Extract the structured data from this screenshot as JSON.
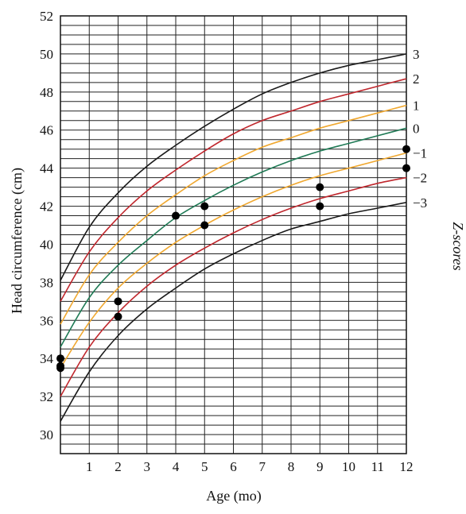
{
  "chart_data": {
    "type": "line",
    "title": "",
    "xlabel": "Age (mo)",
    "ylabel": "Head circumference (cm)",
    "zlabel": "Z-scores",
    "xlim": [
      0,
      12
    ],
    "ylim": [
      29,
      52
    ],
    "x_ticks": [
      1,
      2,
      3,
      4,
      5,
      6,
      7,
      8,
      9,
      10,
      11,
      12
    ],
    "y_ticks": [
      30,
      32,
      34,
      36,
      38,
      40,
      42,
      44,
      46,
      48,
      50,
      52
    ],
    "grid": true,
    "x": [
      0,
      1,
      2,
      3,
      4,
      5,
      6,
      7,
      8,
      9,
      10,
      11,
      12
    ],
    "series": [
      {
        "name": "3",
        "color": "#1a1a1a",
        "values": [
          38.1,
          40.9,
          42.7,
          44.1,
          45.2,
          46.2,
          47.1,
          47.9,
          48.5,
          49.0,
          49.4,
          49.7,
          50.0
        ]
      },
      {
        "name": "2",
        "color": "#c0272d",
        "values": [
          37.0,
          39.6,
          41.4,
          42.8,
          43.9,
          44.9,
          45.8,
          46.5,
          47.0,
          47.5,
          47.9,
          48.3,
          48.7
        ]
      },
      {
        "name": "1",
        "color": "#f0a830",
        "values": [
          35.8,
          38.4,
          40.1,
          41.5,
          42.6,
          43.6,
          44.4,
          45.1,
          45.6,
          46.1,
          46.5,
          46.9,
          47.3
        ]
      },
      {
        "name": "0",
        "color": "#1f7a55",
        "values": [
          34.6,
          37.2,
          38.9,
          40.2,
          41.4,
          42.3,
          43.1,
          43.8,
          44.4,
          44.9,
          45.3,
          45.7,
          46.1
        ]
      },
      {
        "name": "−1",
        "color": "#f0a830",
        "values": [
          33.5,
          35.9,
          37.7,
          39.0,
          40.1,
          41.0,
          41.8,
          42.5,
          43.1,
          43.6,
          44.0,
          44.4,
          44.8
        ]
      },
      {
        "name": "−2",
        "color": "#c0272d",
        "values": [
          32.0,
          34.6,
          36.4,
          37.8,
          38.9,
          39.8,
          40.6,
          41.3,
          41.9,
          42.4,
          42.8,
          43.2,
          43.5
        ]
      },
      {
        "name": "−3",
        "color": "#1a1a1a",
        "values": [
          30.7,
          33.3,
          35.2,
          36.6,
          37.7,
          38.7,
          39.5,
          40.2,
          40.8,
          41.2,
          41.6,
          41.9,
          42.2
        ]
      }
    ],
    "points": [
      {
        "x": 0,
        "y": 34.0
      },
      {
        "x": 0,
        "y": 33.6
      },
      {
        "x": 0,
        "y": 33.5
      },
      {
        "x": 2,
        "y": 37.0
      },
      {
        "x": 2,
        "y": 36.2
      },
      {
        "x": 4,
        "y": 41.5
      },
      {
        "x": 5,
        "y": 42.0
      },
      {
        "x": 5,
        "y": 41.0
      },
      {
        "x": 9,
        "y": 43.0
      },
      {
        "x": 9,
        "y": 42.0
      },
      {
        "x": 12,
        "y": 45.0
      },
      {
        "x": 12,
        "y": 44.0
      }
    ],
    "point_color": "#000000"
  }
}
